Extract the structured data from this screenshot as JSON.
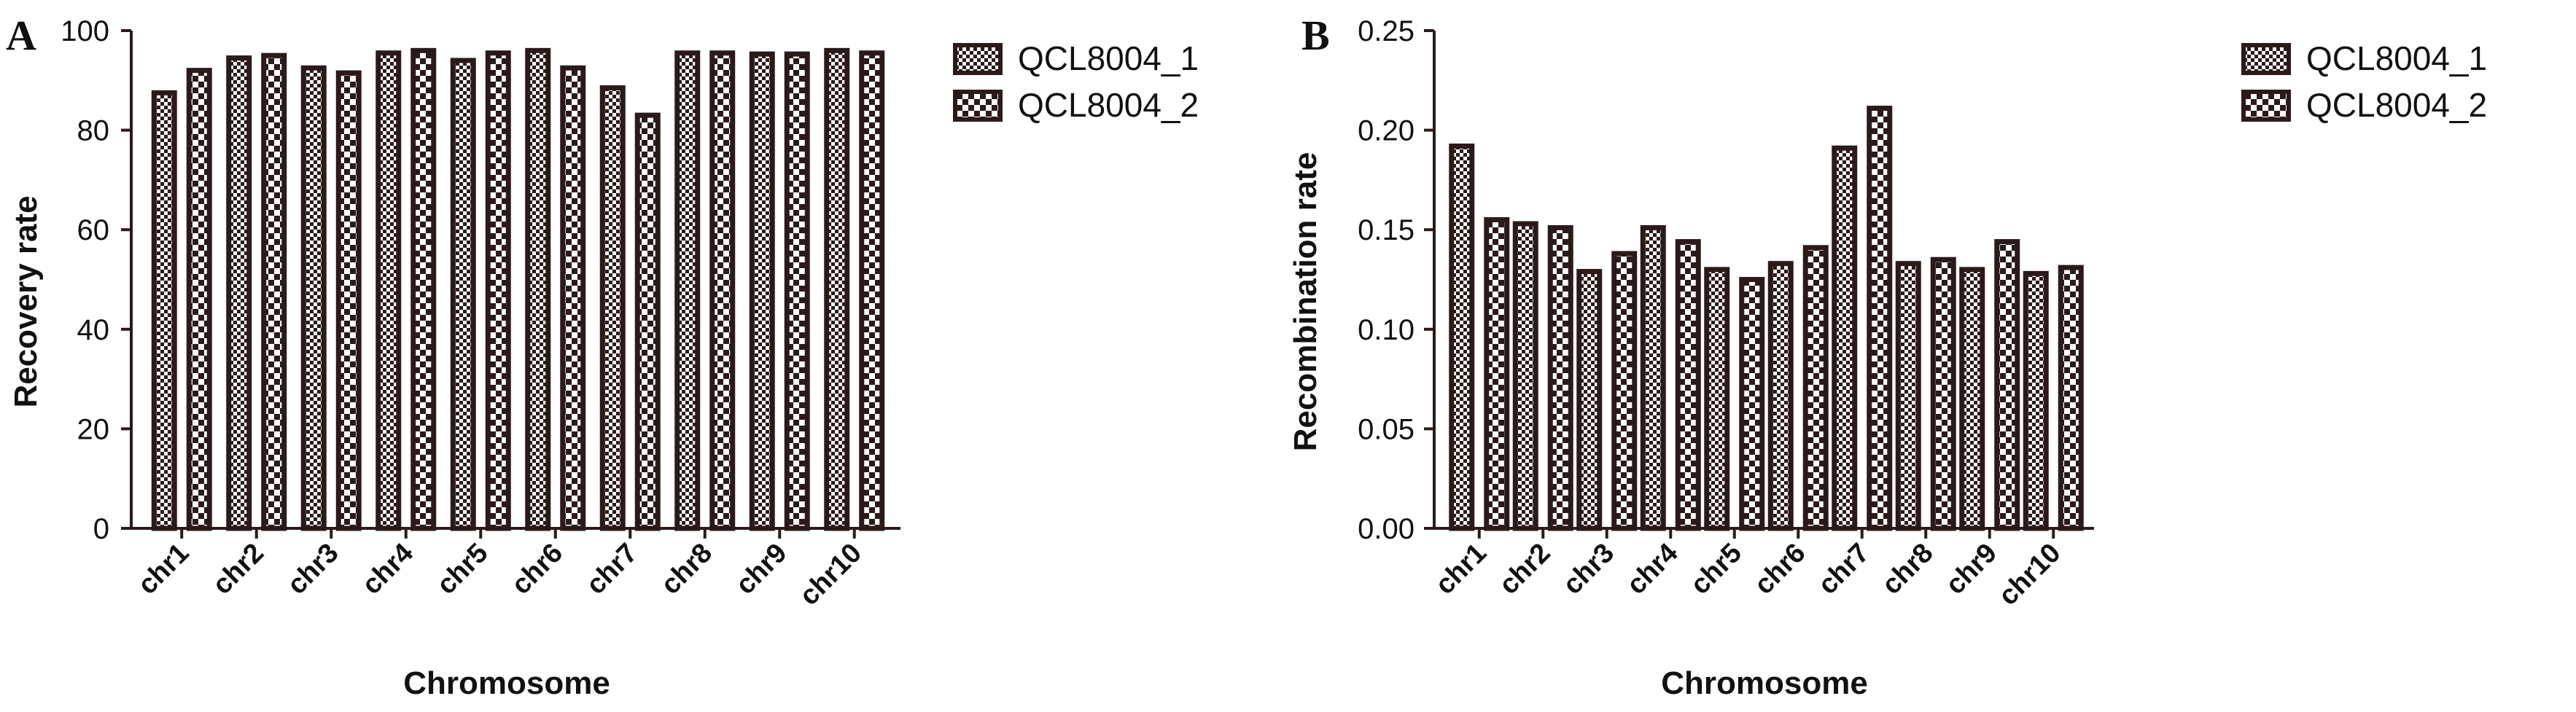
{
  "chart_data": [
    {
      "type": "bar",
      "panel_label": "A",
      "categories": [
        "chr1",
        "chr2",
        "chr3",
        "chr4",
        "chr5",
        "chr6",
        "chr7",
        "chr8",
        "chr9",
        "chr10"
      ],
      "series": [
        {
          "name": "QCL8004_1",
          "values": [
            87.5,
            94.5,
            92.5,
            95.5,
            94,
            96,
            88.5,
            95.5,
            95.3,
            96
          ]
        },
        {
          "name": "QCL8004_2",
          "values": [
            92,
            95,
            91.5,
            96,
            95.5,
            92.5,
            83,
            95.5,
            95.3,
            95.5
          ]
        }
      ],
      "xlabel": "Chromosome",
      "ylabel": "Recovery rate",
      "ylim": [
        0,
        100
      ],
      "yticks": [
        "0",
        "20",
        "40",
        "60",
        "80",
        "100"
      ],
      "legend_position": "top-right",
      "grid": false
    },
    {
      "type": "bar",
      "panel_label": "B",
      "categories": [
        "chr1",
        "chr2",
        "chr3",
        "chr4",
        "chr5",
        "chr6",
        "chr7",
        "chr8",
        "chr9",
        "chr10"
      ],
      "series": [
        {
          "name": "QCL8004_1",
          "values": [
            0.192,
            0.153,
            0.129,
            0.151,
            0.13,
            0.133,
            0.191,
            0.133,
            0.13,
            0.128
          ]
        },
        {
          "name": "QCL8004_2",
          "values": [
            0.155,
            0.151,
            0.138,
            0.144,
            0.125,
            0.141,
            0.211,
            0.135,
            0.144,
            0.131
          ]
        }
      ],
      "xlabel": "Chromosome",
      "ylabel": "Recombination rate",
      "ylim": [
        0,
        0.25
      ],
      "yticks": [
        "0.00",
        "0.05",
        "0.10",
        "0.15",
        "0.20",
        "0.25"
      ],
      "legend_position": "top-right",
      "grid": false
    }
  ]
}
